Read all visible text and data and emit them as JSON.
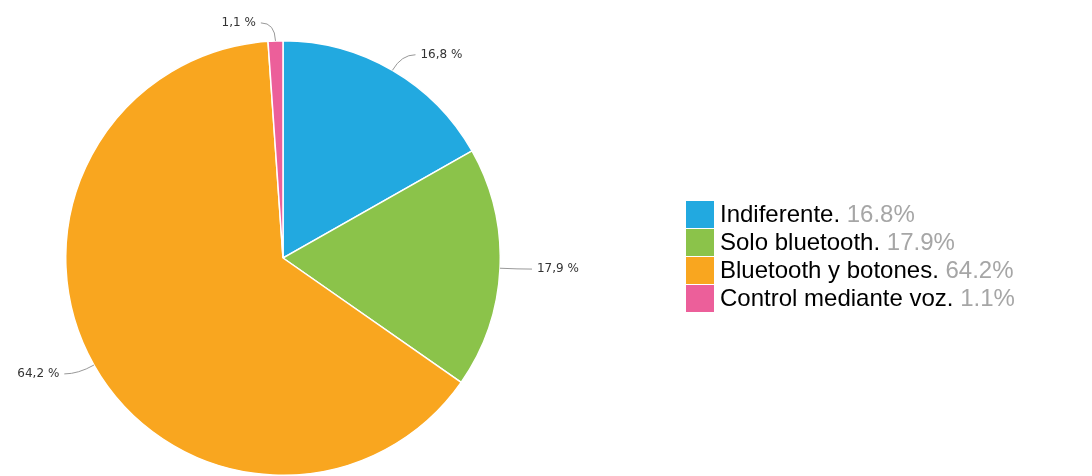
{
  "chart_data": {
    "type": "pie",
    "categories": [
      "Indiferente. 16.8%",
      "Solo bluetooth. 17.9%",
      "Bluetooth y botones. 64.2%",
      "Control mediante voz. 1.1%"
    ],
    "values": [
      16.8,
      17.9,
      64.2,
      1.1
    ],
    "colors": [
      "#22a9e0",
      "#8bc34a",
      "#f9a61f",
      "#ec5f9a"
    ],
    "value_labels": [
      "16,8 %",
      "17,9 %",
      "64,2 %",
      "1,1 %"
    ],
    "legend": "right"
  }
}
